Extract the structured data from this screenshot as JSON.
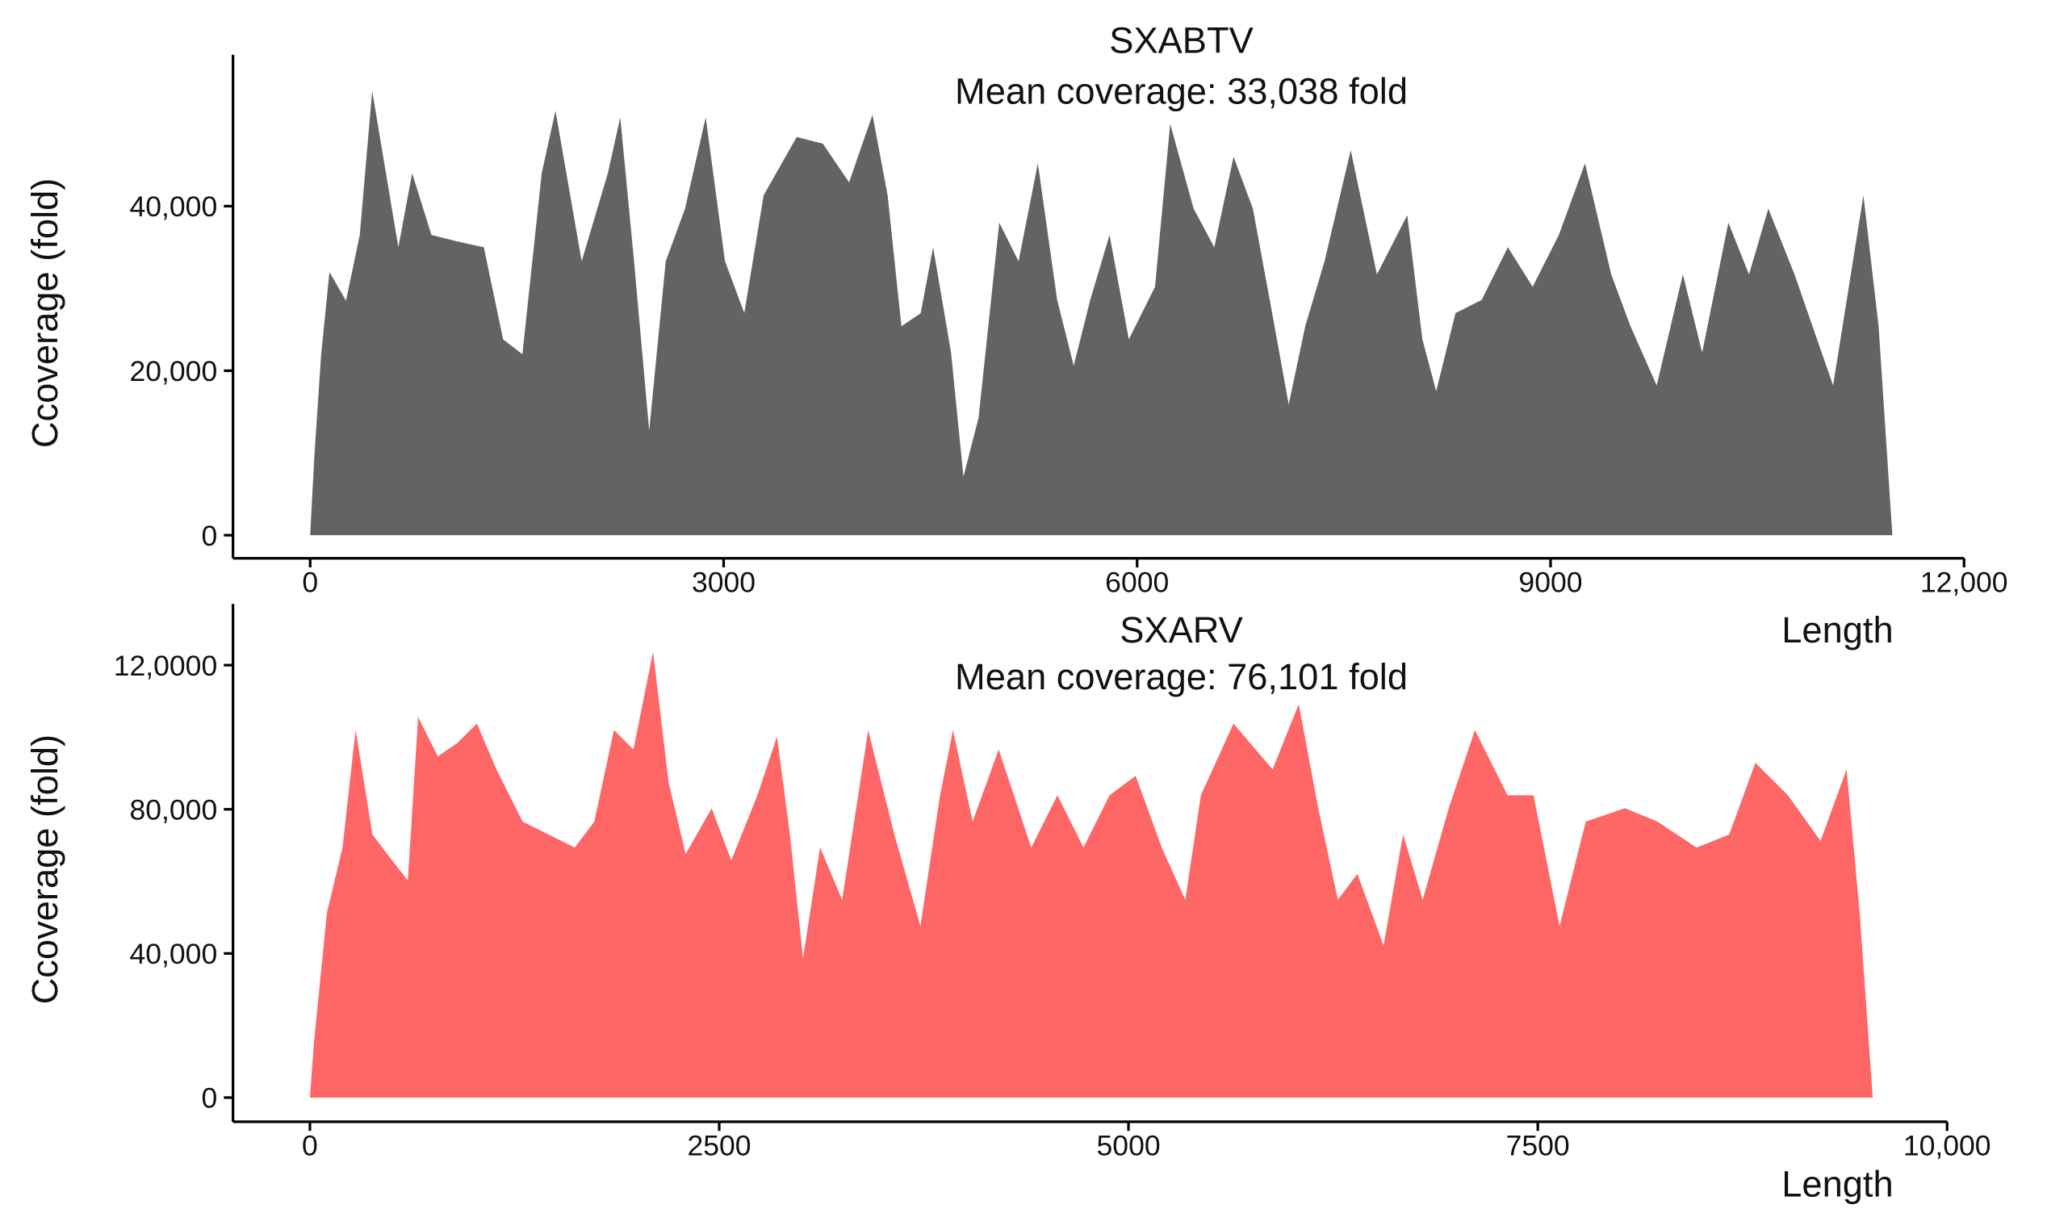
{
  "chart_data": [
    {
      "type": "area",
      "title": "SXABTV",
      "subtitle": "Mean coverage: 33,038 fold",
      "y_label": "Ccoverage (fold)",
      "x_label": "Length",
      "color": "#636363",
      "grid": false,
      "xlim": [
        -560,
        12000
      ],
      "xticks": [
        0,
        3000,
        6000,
        9000,
        {
          "value": 12000,
          "label": "12,000"
        }
      ],
      "ylim": [
        -2800,
        58400
      ],
      "yticks": [
        0,
        {
          "value": 20000,
          "label": "20,000"
        },
        {
          "value": 40000,
          "label": "40,000"
        }
      ],
      "x": [
        0,
        30,
        80,
        140,
        260,
        360,
        450,
        550,
        640,
        740,
        880,
        1070,
        1260,
        1400,
        1540,
        1680,
        1780,
        1970,
        2160,
        2250,
        2350,
        2460,
        2580,
        2720,
        2870,
        3010,
        3150,
        3290,
        3530,
        3720,
        3910,
        4080,
        4190,
        4290,
        4430,
        4520,
        4650,
        4740,
        4850,
        5000,
        5140,
        5280,
        5420,
        5540,
        5660,
        5800,
        5940,
        6130,
        6240,
        6410,
        6560,
        6700,
        6840,
        6980,
        7100,
        7220,
        7360,
        7550,
        7740,
        7960,
        8070,
        8170,
        8310,
        8500,
        8690,
        8870,
        9060,
        9250,
        9440,
        9580,
        9770,
        9960,
        10100,
        10290,
        10440,
        10580,
        10770,
        11050,
        11270,
        11380,
        11480
      ],
      "values": [
        0,
        9500,
        22000,
        32000,
        28500,
        36500,
        54000,
        44000,
        35000,
        44000,
        36500,
        35700,
        35000,
        23800,
        22000,
        44000,
        51600,
        33300,
        44000,
        50800,
        33300,
        12700,
        33300,
        39700,
        50800,
        33300,
        27000,
        41300,
        48400,
        47600,
        42900,
        51100,
        41300,
        25400,
        27000,
        35000,
        22200,
        7100,
        14300,
        38000,
        33300,
        45200,
        28600,
        20600,
        28600,
        36500,
        23800,
        30200,
        50000,
        39700,
        35000,
        46000,
        39700,
        27000,
        15900,
        25400,
        33300,
        46800,
        31700,
        38900,
        23800,
        17500,
        27000,
        28600,
        35000,
        30200,
        36500,
        45200,
        31700,
        25400,
        18200,
        31700,
        22200,
        38000,
        31700,
        39700,
        31700,
        18200,
        41300,
        25400,
        0
      ]
    },
    {
      "type": "area",
      "title": "SXARV",
      "subtitle": "Mean coverage: 76,101 fold",
      "y_label": "Ccoverage (fold)",
      "x_label": "Length",
      "color": "#ff6666",
      "grid": false,
      "xlim": [
        -470,
        10000
      ],
      "xticks": [
        0,
        2500,
        5000,
        7500,
        {
          "value": 10000,
          "label": "10,000"
        }
      ],
      "ylim": [
        -6700,
        137000
      ],
      "yticks": [
        0,
        {
          "value": 40000,
          "label": "40,000"
        },
        {
          "value": 80000,
          "label": "80,000"
        },
        {
          "value": 120000,
          "label": "12,0000"
        }
      ],
      "x": [
        0,
        24,
        104,
        199,
        279,
        382,
        502,
        598,
        661,
        781,
        900,
        1020,
        1139,
        1299,
        1458,
        1618,
        1737,
        1857,
        1976,
        2096,
        2191,
        2295,
        2454,
        2574,
        2733,
        2853,
        2932,
        3012,
        3116,
        3251,
        3410,
        3570,
        3729,
        3849,
        3928,
        4048,
        4207,
        4406,
        4566,
        4725,
        4884,
        5044,
        5203,
        5347,
        5442,
        5641,
        5880,
        6040,
        6159,
        6279,
        6398,
        6558,
        6677,
        6797,
        6956,
        7116,
        7315,
        7474,
        7633,
        7793,
        8032,
        8231,
        8470,
        8669,
        8829,
        9028,
        9227,
        9386,
        9466,
        9546
      ],
      "values": [
        0,
        15000,
        51300,
        69400,
        102000,
        73000,
        65800,
        60300,
        105600,
        94700,
        98400,
        103800,
        91100,
        76600,
        73000,
        69400,
        76600,
        102000,
        96600,
        123700,
        87500,
        67600,
        80300,
        65800,
        83900,
        100200,
        73000,
        38600,
        69400,
        54900,
        102000,
        73000,
        47600,
        83900,
        102000,
        76600,
        96600,
        69400,
        83900,
        69400,
        83900,
        89300,
        69400,
        54900,
        83900,
        103800,
        91100,
        109200,
        80300,
        54900,
        62100,
        42200,
        73000,
        54900,
        80300,
        102000,
        83900,
        83900,
        47600,
        76600,
        80300,
        76600,
        69400,
        73000,
        92900,
        83900,
        71200,
        91100,
        51300,
        0
      ]
    }
  ]
}
